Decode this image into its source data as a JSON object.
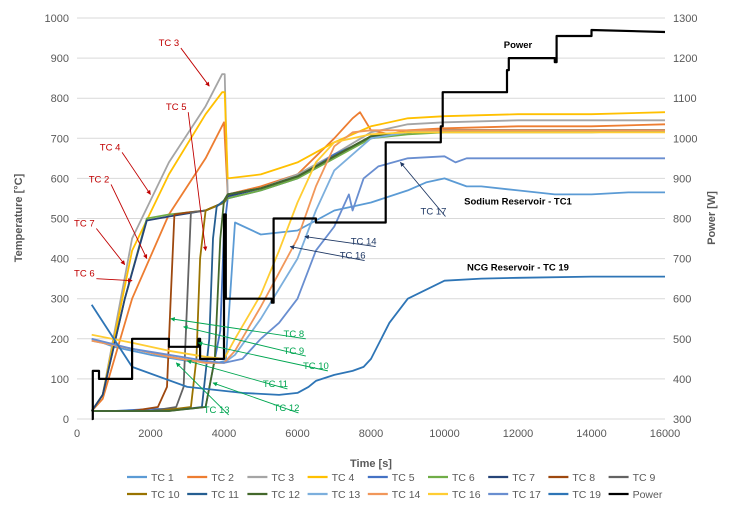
{
  "chart_data": {
    "type": "line",
    "xlabel": "Time [s]",
    "ylabel": "Temperature [°C]",
    "y2label": "Power [W]",
    "xlim": [
      0,
      16000
    ],
    "ylim": [
      0,
      1000
    ],
    "y2lim": [
      300,
      1300
    ],
    "xticks": [
      0,
      2000,
      4000,
      6000,
      8000,
      10000,
      12000,
      14000,
      16000
    ],
    "yticks": [
      0,
      100,
      200,
      300,
      400,
      500,
      600,
      700,
      800,
      900,
      1000
    ],
    "y2ticks": [
      300,
      400,
      500,
      600,
      700,
      800,
      900,
      1000,
      1100,
      1200,
      1300
    ],
    "grid": "horizontal",
    "legend_position": "bottom",
    "series": [
      {
        "name": "TC 1",
        "color": "#5B9BD5",
        "x": [
          400,
          1000,
          2000,
          3000,
          3800,
          4050,
          4300,
          5000,
          6000,
          7000,
          8000,
          9000,
          9500,
          10000,
          10300,
          10600,
          11000,
          12000,
          13000,
          14000,
          15000,
          16000
        ],
        "y": [
          200,
          180,
          160,
          145,
          140,
          145,
          490,
          460,
          470,
          520,
          540,
          570,
          590,
          600,
          590,
          580,
          580,
          570,
          560,
          560,
          565,
          565
        ]
      },
      {
        "name": "TC 2",
        "color": "#ED7D31",
        "x": [
          400,
          700,
          1500,
          2500,
          3500,
          4000,
          4100,
          5000,
          6000,
          7000,
          7500,
          7700,
          8000,
          8500,
          9000,
          10000,
          12000,
          14000,
          16000
        ],
        "y": [
          20,
          50,
          300,
          510,
          650,
          740,
          560,
          580,
          610,
          700,
          750,
          765,
          720,
          710,
          720,
          725,
          730,
          730,
          735
        ]
      },
      {
        "name": "TC 3",
        "color": "#A5A5A5",
        "x": [
          400,
          700,
          1500,
          2500,
          3500,
          3950,
          4020,
          4100,
          5000,
          6000,
          7000,
          8000,
          9000,
          10000,
          12000,
          14000,
          16000
        ],
        "y": [
          20,
          60,
          450,
          640,
          780,
          860,
          860,
          560,
          575,
          610,
          660,
          715,
          735,
          740,
          745,
          745,
          745
        ]
      },
      {
        "name": "TC 4",
        "color": "#FFC000",
        "x": [
          400,
          700,
          1500,
          2500,
          3500,
          3950,
          4020,
          4100,
          5000,
          6000,
          7000,
          8000,
          9000,
          10000,
          12000,
          14000,
          16000
        ],
        "y": [
          20,
          60,
          420,
          610,
          760,
          815,
          815,
          600,
          610,
          640,
          690,
          730,
          750,
          755,
          760,
          760,
          765
        ]
      },
      {
        "name": "TC 5",
        "color": "#4472C4",
        "x": [
          400,
          1000,
          2000,
          3000,
          3500,
          3900,
          4000,
          4100,
          5000,
          6000,
          7000,
          8000,
          9000,
          10000,
          12000,
          14000,
          16000
        ],
        "y": [
          20,
          20,
          25,
          25,
          30,
          220,
          470,
          550,
          570,
          600,
          660,
          700,
          715,
          720,
          720,
          720,
          720
        ]
      },
      {
        "name": "TC 6",
        "color": "#70AD47",
        "x": [
          400,
          700,
          1300,
          1900,
          2500,
          3500,
          4000,
          4100,
          5000,
          6000,
          7000,
          8000,
          9000,
          10000,
          12000,
          14000,
          16000
        ],
        "y": [
          20,
          60,
          300,
          500,
          510,
          520,
          540,
          550,
          570,
          600,
          650,
          700,
          710,
          715,
          715,
          715,
          720
        ]
      },
      {
        "name": "TC 7",
        "color": "#264478",
        "x": [
          400,
          700,
          1300,
          1900,
          2500,
          3500,
          4000,
          4100,
          5000,
          6000,
          7000,
          8000,
          9000,
          10000,
          12000,
          14000,
          16000
        ],
        "y": [
          20,
          60,
          300,
          495,
          505,
          520,
          540,
          555,
          575,
          605,
          655,
          705,
          715,
          720,
          720,
          720,
          720
        ]
      },
      {
        "name": "TC 8",
        "color": "#9E480E",
        "x": [
          400,
          1500,
          2200,
          2450,
          2550,
          2650,
          3000,
          3500,
          4000,
          4100,
          5000,
          6000,
          7000,
          8000,
          9000,
          10000,
          12000,
          14000,
          16000
        ],
        "y": [
          20,
          20,
          30,
          80,
          300,
          510,
          515,
          520,
          540,
          560,
          575,
          605,
          655,
          705,
          715,
          720,
          720,
          720,
          720
        ]
      },
      {
        "name": "TC 9",
        "color": "#636363",
        "x": [
          400,
          2000,
          2700,
          2900,
          3000,
          3100,
          3500,
          4000,
          4100,
          5000,
          6000,
          7000,
          8000,
          9000,
          10000,
          12000,
          14000,
          16000
        ],
        "y": [
          20,
          20,
          30,
          80,
          300,
          515,
          520,
          540,
          560,
          575,
          605,
          655,
          705,
          715,
          720,
          720,
          720,
          720
        ]
      },
      {
        "name": "TC 10",
        "color": "#997300",
        "x": [
          400,
          2200,
          3100,
          3250,
          3350,
          3500,
          4000,
          4100,
          5000,
          6000,
          7000,
          8000,
          9000,
          10000,
          12000,
          14000,
          16000
        ],
        "y": [
          20,
          20,
          30,
          150,
          400,
          520,
          540,
          560,
          575,
          605,
          655,
          705,
          715,
          720,
          720,
          720,
          720
        ]
      },
      {
        "name": "TC 11",
        "color": "#255E91",
        "x": [
          400,
          2500,
          3400,
          3600,
          3700,
          3800,
          4000,
          4100,
          5000,
          6000,
          7000,
          8000,
          9000,
          10000,
          12000,
          14000,
          16000
        ],
        "y": [
          20,
          20,
          30,
          200,
          450,
          530,
          545,
          560,
          575,
          605,
          655,
          705,
          715,
          720,
          720,
          720,
          720
        ]
      },
      {
        "name": "TC 12",
        "color": "#43682B",
        "x": [
          400,
          2500,
          3500,
          3750,
          3900,
          4000,
          4100,
          5000,
          6000,
          7000,
          8000,
          9000,
          10000,
          12000,
          14000,
          16000
        ],
        "y": [
          20,
          20,
          30,
          150,
          450,
          545,
          560,
          575,
          605,
          655,
          705,
          715,
          720,
          720,
          720,
          720
        ]
      },
      {
        "name": "TC 13",
        "color": "#7CAFDD",
        "x": [
          400,
          1500,
          2500,
          3500,
          4000,
          4300,
          5000,
          6000,
          6500,
          7000,
          8000,
          9000,
          10000,
          12000,
          14000,
          16000
        ],
        "y": [
          195,
          175,
          155,
          140,
          140,
          160,
          250,
          400,
          520,
          620,
          700,
          715,
          720,
          720,
          720,
          720
        ]
      },
      {
        "name": "TC 14",
        "color": "#F1975A",
        "x": [
          400,
          1500,
          2500,
          3500,
          4000,
          4300,
          5000,
          6000,
          6500,
          7000,
          7500,
          8000,
          9000,
          10000,
          12000,
          14000,
          16000
        ],
        "y": [
          195,
          175,
          155,
          140,
          140,
          170,
          280,
          450,
          580,
          680,
          715,
          720,
          720,
          720,
          720,
          720,
          720
        ]
      },
      {
        "name": "TC 16",
        "color": "#FFCD33",
        "x": [
          400,
          1500,
          2500,
          3500,
          4000,
          4300,
          5000,
          5500,
          6000,
          6500,
          7000,
          8000,
          9000,
          10000,
          12000,
          14000,
          16000
        ],
        "y": [
          210,
          190,
          170,
          155,
          150,
          200,
          310,
          420,
          540,
          640,
          690,
          710,
          715,
          715,
          715,
          715,
          715
        ]
      },
      {
        "name": "TC 17",
        "color": "#698ED0",
        "x": [
          400,
          1500,
          2500,
          3500,
          4000,
          4500,
          5000,
          5500,
          6000,
          6500,
          7000,
          7400,
          7500,
          7800,
          8200,
          9000,
          10000,
          10300,
          10600,
          12000,
          14000,
          16000
        ],
        "y": [
          200,
          175,
          160,
          145,
          140,
          150,
          200,
          240,
          300,
          420,
          480,
          560,
          520,
          600,
          630,
          650,
          655,
          640,
          650,
          650,
          650,
          650
        ]
      },
      {
        "name": "TC 19",
        "color": "#2E75B6",
        "x": [
          400,
          1500,
          3000,
          4500,
          5500,
          6000,
          6300,
          6500,
          7000,
          7500,
          7800,
          8000,
          8500,
          9000,
          10000,
          11000,
          12000,
          14000,
          16000
        ],
        "y": [
          285,
          130,
          80,
          65,
          60,
          65,
          80,
          95,
          110,
          120,
          130,
          150,
          240,
          300,
          345,
          350,
          352,
          355,
          355
        ]
      },
      {
        "name": "Power",
        "color": "#000000",
        "axis": "y2",
        "x": [
          400,
          430,
          430,
          600,
          600,
          1500,
          1500,
          2500,
          2500,
          3300,
          3300,
          3350,
          3350,
          4000,
          4000,
          4050,
          4050,
          4100,
          4100,
          5300,
          5300,
          5350,
          5350,
          6500,
          6500,
          8400,
          8400,
          8500,
          8500,
          9900,
          9900,
          9950,
          9950,
          11700,
          11700,
          11750,
          11750,
          13000,
          13000,
          13050,
          13050,
          14000,
          14000,
          16000
        ],
        "y": [
          300,
          300,
          420,
          420,
          400,
          400,
          500,
          500,
          480,
          480,
          500,
          500,
          450,
          450,
          810,
          810,
          600,
          600,
          600,
          600,
          590,
          590,
          800,
          800,
          790,
          790,
          990,
          990,
          990,
          990,
          1030,
          1030,
          1115,
          1115,
          1170,
          1170,
          1200,
          1200,
          1190,
          1190,
          1255,
          1255,
          1270,
          1265
        ]
      }
    ],
    "annotations": [
      {
        "text": "TC 3",
        "color": "#C00000",
        "tx": 2500,
        "ty": 930,
        "ax": 3600,
        "ay": 830
      },
      {
        "text": "TC 5",
        "color": "#C00000",
        "tx": 2700,
        "ty": 770,
        "ax": 3500,
        "ay": 420
      },
      {
        "text": "TC 4",
        "color": "#C00000",
        "tx": 900,
        "ty": 670,
        "ax": 2000,
        "ay": 560
      },
      {
        "text": "TC 2",
        "color": "#C00000",
        "tx": 600,
        "ty": 590,
        "ax": 1900,
        "ay": 400
      },
      {
        "text": "TC 7",
        "color": "#C00000",
        "tx": 200,
        "ty": 480,
        "ax": 1300,
        "ay": 385
      },
      {
        "text": "TC 6",
        "color": "#C00000",
        "tx": 200,
        "ty": 355,
        "ax": 1500,
        "ay": 345
      },
      {
        "text": "TC 8",
        "color": "#00A651",
        "tx": 5900,
        "ty": 205,
        "ax": 2550,
        "ay": 250
      },
      {
        "text": "TC 9",
        "color": "#00A651",
        "tx": 5900,
        "ty": 162,
        "ax": 2900,
        "ay": 230
      },
      {
        "text": "TC 10",
        "color": "#00A651",
        "tx": 6500,
        "ty": 125,
        "ax": 3300,
        "ay": 190
      },
      {
        "text": "TC 11",
        "color": "#00A651",
        "tx": 5400,
        "ty": 80,
        "ax": 3000,
        "ay": 145
      },
      {
        "text": "TC 12",
        "color": "#00A651",
        "tx": 5700,
        "ty": 20,
        "ax": 3700,
        "ay": 90
      },
      {
        "text": "TC 13",
        "color": "#00A651",
        "tx": 3800,
        "ty": 15,
        "ax": 2700,
        "ay": 140
      },
      {
        "text": "TC 14",
        "color": "#1F3864",
        "tx": 7800,
        "ty": 435,
        "ax": 6200,
        "ay": 455
      },
      {
        "text": "TC 16",
        "color": "#1F3864",
        "tx": 7500,
        "ty": 400,
        "ax": 5800,
        "ay": 430
      },
      {
        "text": "TC 17",
        "color": "#1F3864",
        "tx": 9700,
        "ty": 510,
        "ax": 8800,
        "ay": 640
      },
      {
        "text": "Power",
        "color": "#000000",
        "bold": true,
        "tx": 12000,
        "ty": 925
      },
      {
        "text": "Sodium Reservoir - TC1",
        "color": "#000000",
        "bold": true,
        "tx": 12000,
        "ty": 535
      },
      {
        "text": "NCG Reservoir - TC 19",
        "color": "#000000",
        "bold": true,
        "tx": 12000,
        "ty": 370
      }
    ]
  }
}
